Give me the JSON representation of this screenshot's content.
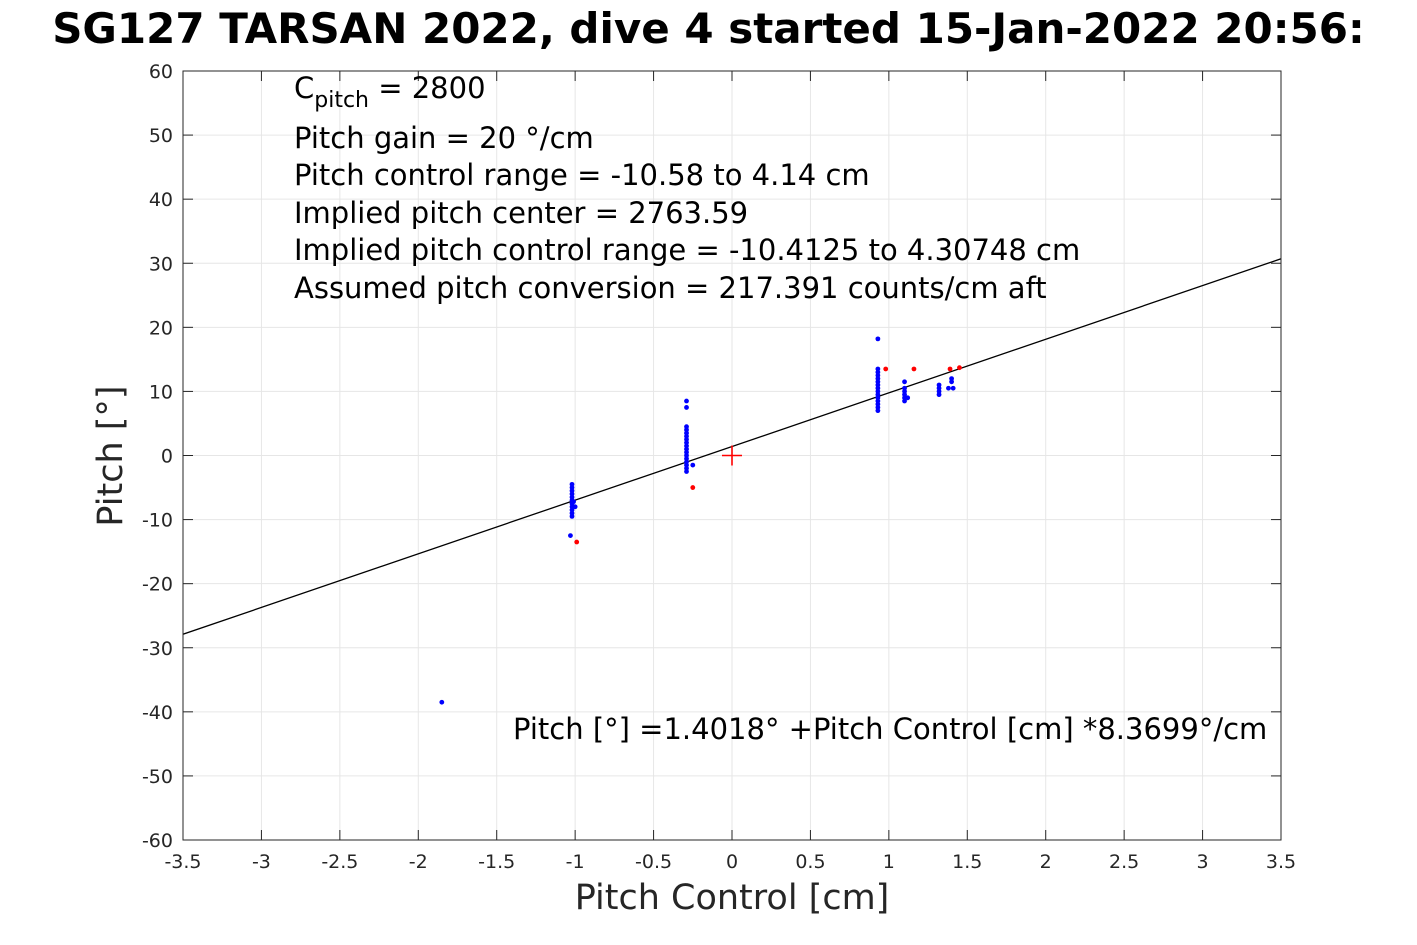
{
  "title": "SG127 TARSAN 2022, dive 4 started 15-Jan-2022 20:56:",
  "info": {
    "c_pitch_symbol": "C",
    "c_pitch_sub": "pitch",
    "c_pitch_value": " = 2800",
    "pitch_gain": "Pitch gain = 20 °/cm",
    "pitch_control_range": "Pitch control range = -10.58 to 4.14 cm",
    "implied_center": "Implied pitch center = 2763.59",
    "implied_range": "Implied pitch control range = -10.4125 to 4.30748 cm",
    "conversion": "Assumed pitch conversion = 217.391 counts/cm aft"
  },
  "fit_label": "Pitch [°] =1.4018° +Pitch Control [cm] *8.3699°/cm",
  "colors": {
    "points_primary": "#0000ff",
    "points_secondary": "#ff0000",
    "fit_line": "#000000",
    "center_marker": "#ff0000",
    "grid": "#e6e6e6"
  },
  "chart_data": {
    "type": "scatter",
    "xlabel": "Pitch Control [cm]",
    "ylabel": "Pitch [°]",
    "xlim": [
      -3.5,
      3.5
    ],
    "ylim": [
      -60,
      60
    ],
    "xticks": [
      "-3.5",
      "-3",
      "-2.5",
      "-2",
      "-1.5",
      "-1",
      "-0.5",
      "0",
      "0.5",
      "1",
      "1.5",
      "2",
      "2.5",
      "3",
      "3.5"
    ],
    "xtick_values": [
      -3.5,
      -3,
      -2.5,
      -2,
      -1.5,
      -1,
      -0.5,
      0,
      0.5,
      1,
      1.5,
      2,
      2.5,
      3,
      3.5
    ],
    "yticks": [
      "60",
      "50",
      "40",
      "30",
      "20",
      "10",
      "0",
      "-10",
      "-20",
      "-30",
      "-40",
      "-50",
      "-60"
    ],
    "ytick_values": [
      60,
      50,
      40,
      30,
      20,
      10,
      0,
      -10,
      -20,
      -30,
      -40,
      -50,
      -60
    ],
    "grid": true,
    "series": [
      {
        "color": "#0000ff",
        "points": [
          [
            -1.02,
            -4.5
          ],
          [
            -1.02,
            -5.0
          ],
          [
            -1.02,
            -5.5
          ],
          [
            -1.02,
            -6.0
          ],
          [
            -1.02,
            -6.5
          ],
          [
            -1.02,
            -7.0
          ],
          [
            -1.02,
            -7.5
          ],
          [
            -1.02,
            -8.0
          ],
          [
            -1.02,
            -8.5
          ],
          [
            -1.02,
            -9.0
          ],
          [
            -1.02,
            -9.5
          ],
          [
            -1.0,
            -8.0
          ],
          [
            -1.01,
            -7.2
          ],
          [
            -1.03,
            -12.5
          ],
          [
            -0.29,
            8.5
          ],
          [
            -0.29,
            7.5
          ],
          [
            -0.29,
            4.5
          ],
          [
            -0.29,
            4.0
          ],
          [
            -0.29,
            3.5
          ],
          [
            -0.29,
            3.0
          ],
          [
            -0.29,
            2.5
          ],
          [
            -0.29,
            2.0
          ],
          [
            -0.29,
            1.5
          ],
          [
            -0.29,
            1.0
          ],
          [
            -0.29,
            0.5
          ],
          [
            -0.29,
            0.0
          ],
          [
            -0.29,
            -0.5
          ],
          [
            -0.29,
            -1.0
          ],
          [
            -0.29,
            -1.5
          ],
          [
            -0.29,
            -2.0
          ],
          [
            -0.29,
            -2.5
          ],
          [
            -0.25,
            -1.5
          ],
          [
            0.93,
            18.2
          ],
          [
            0.93,
            13.5
          ],
          [
            0.93,
            13.0
          ],
          [
            0.93,
            12.5
          ],
          [
            0.93,
            12.0
          ],
          [
            0.93,
            11.5
          ],
          [
            0.93,
            11.0
          ],
          [
            0.93,
            10.5
          ],
          [
            0.93,
            10.0
          ],
          [
            0.93,
            9.5
          ],
          [
            0.93,
            9.0
          ],
          [
            0.93,
            8.5
          ],
          [
            0.93,
            8.0
          ],
          [
            0.93,
            7.5
          ],
          [
            0.93,
            7.0
          ],
          [
            1.1,
            11.5
          ],
          [
            1.1,
            10.5
          ],
          [
            1.1,
            10.0
          ],
          [
            1.1,
            9.5
          ],
          [
            1.1,
            9.0
          ],
          [
            1.1,
            8.5
          ],
          [
            1.12,
            9.0
          ],
          [
            1.32,
            11.0
          ],
          [
            1.32,
            10.5
          ],
          [
            1.32,
            10.0
          ],
          [
            1.32,
            9.5
          ],
          [
            1.38,
            10.5
          ],
          [
            1.41,
            10.5
          ],
          [
            1.4,
            11.5
          ],
          [
            1.4,
            12.0
          ],
          [
            -1.85,
            -38.5
          ]
        ]
      },
      {
        "color": "#ff0000",
        "points": [
          [
            -0.99,
            -13.5
          ],
          [
            -0.25,
            -5.0
          ],
          [
            0.98,
            13.5
          ],
          [
            1.16,
            13.5
          ],
          [
            1.39,
            13.5
          ],
          [
            1.45,
            13.7
          ]
        ]
      }
    ],
    "center_marker": [
      0,
      0
    ],
    "fit": {
      "intercept": 1.4018,
      "slope": 8.3699
    }
  }
}
